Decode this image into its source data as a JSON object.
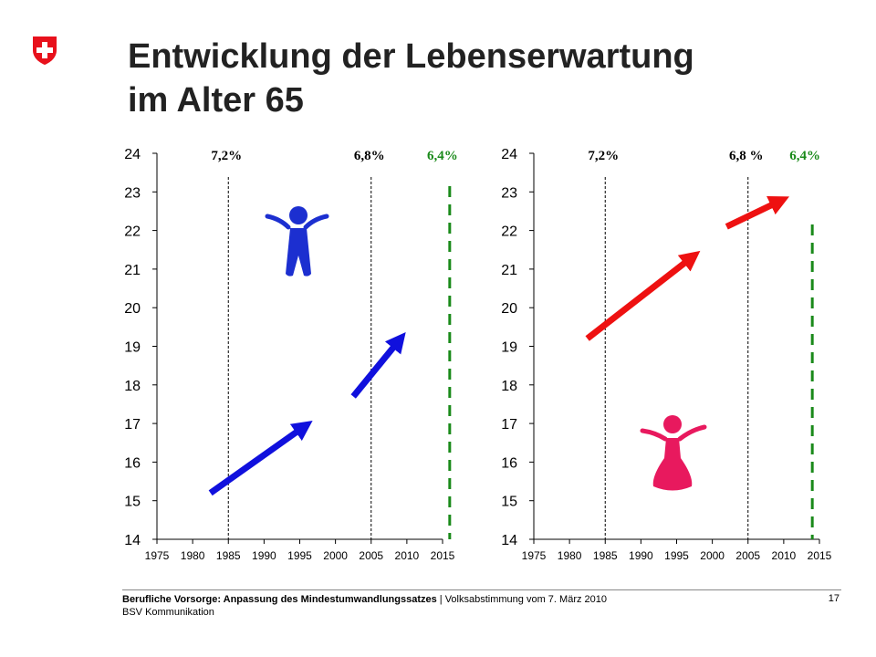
{
  "header": {
    "title_line1": "Entwicklung der Lebenserwartung",
    "title_line2": "im Alter 65"
  },
  "footer": {
    "text_bold": "Berufliche Vorsorge: Anpassung des Mindestumwandlungssatzes",
    "text_rest": " | Volksabstimmung vom 7. März 2010",
    "line2": "BSV Kommunikation",
    "page_number": "17"
  },
  "colors": {
    "men_arrow": "#1010dd",
    "women_arrow": "#ee1111",
    "men_icon": "#1c2fd0",
    "women_icon": "#e8195e",
    "proposed_line": "#1a8a1a",
    "flag_red": "#e8111c"
  },
  "chart_data": [
    {
      "type": "line",
      "panel": "men",
      "icon": "man-figure-icon",
      "xlim": [
        1975,
        2015
      ],
      "ylim": [
        14,
        24
      ],
      "xticks": [
        1975,
        1980,
        1985,
        1990,
        1995,
        2000,
        2005,
        2010,
        2015
      ],
      "yticks": [
        14,
        15,
        16,
        17,
        18,
        19,
        20,
        21,
        22,
        23,
        24
      ],
      "grid": false,
      "vlines": [
        {
          "x": 1985,
          "label": "7,2%",
          "style": "dotted",
          "color": "#000000"
        },
        {
          "x": 2005,
          "label": "6,8%",
          "style": "dotted",
          "color": "#000000"
        },
        {
          "x": 2016,
          "label": "6,4%",
          "style": "dashed",
          "color": "#1a8a1a"
        }
      ],
      "arrows": [
        {
          "x": [
            1982.5,
            1997
          ],
          "y": [
            15.2,
            17.1
          ]
        },
        {
          "x": [
            2002.5,
            2010
          ],
          "y": [
            17.7,
            19.4
          ]
        }
      ]
    },
    {
      "type": "line",
      "panel": "women",
      "icon": "woman-figure-icon",
      "xlim": [
        1975,
        2015
      ],
      "ylim": [
        14,
        24
      ],
      "xticks": [
        1975,
        1980,
        1985,
        1990,
        1995,
        2000,
        2005,
        2010,
        2015
      ],
      "yticks": [
        14,
        15,
        16,
        17,
        18,
        19,
        20,
        21,
        22,
        23,
        24
      ],
      "grid": false,
      "vlines": [
        {
          "x": 1985,
          "label": "7,2%",
          "style": "dotted",
          "color": "#000000"
        },
        {
          "x": 2005,
          "label": "6,8 %",
          "style": "dotted",
          "color": "#000000"
        },
        {
          "x": 2014,
          "label": "6,4%",
          "style": "dashed",
          "color": "#1a8a1a"
        }
      ],
      "arrows": [
        {
          "x": [
            1982.5,
            1998.5
          ],
          "y": [
            19.2,
            21.5
          ]
        },
        {
          "x": [
            2002,
            2011
          ],
          "y": [
            22.1,
            22.9
          ]
        }
      ]
    }
  ]
}
